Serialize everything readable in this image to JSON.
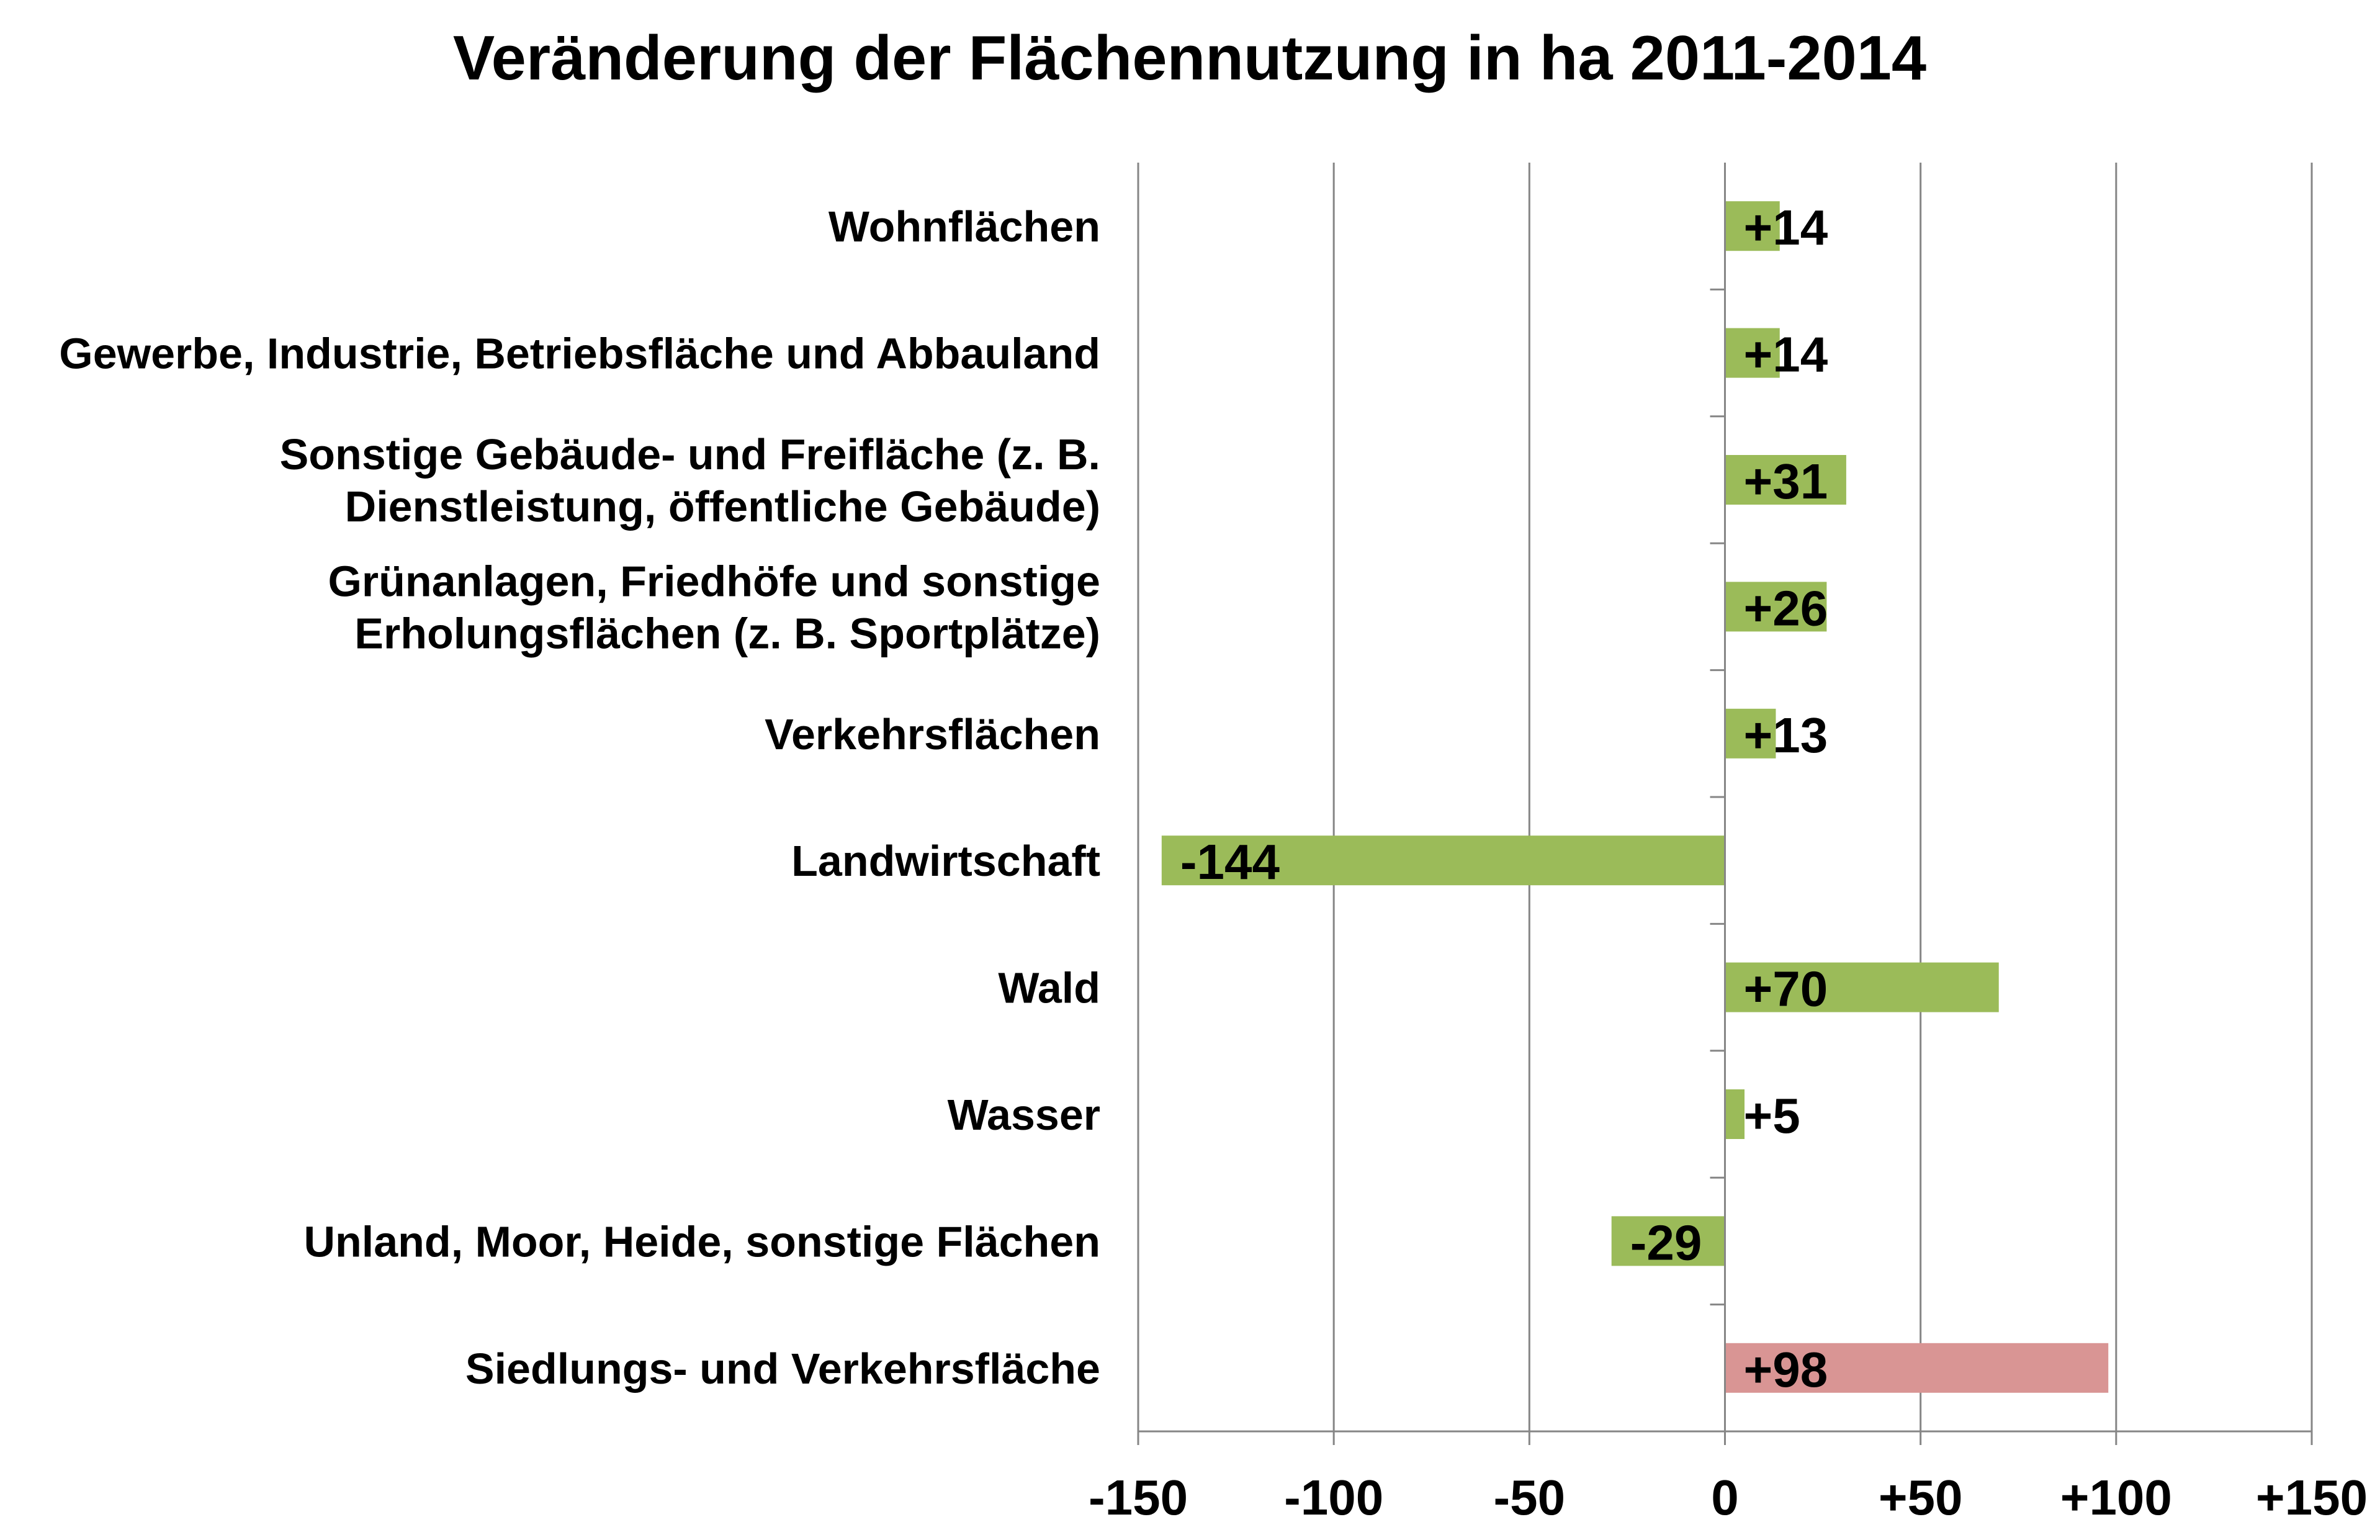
{
  "chart_data": {
    "type": "bar",
    "orientation": "horizontal",
    "title": "Veränderung der Flächennutzung in ha 2011-2014",
    "xlabel": "",
    "ylabel": "",
    "xlim": [
      -150,
      150
    ],
    "grid": true,
    "legend": "none",
    "categories": [
      [
        "Wohnflächen"
      ],
      [
        "Gewerbe, Industrie, Betriebsfläche und Abbauland"
      ],
      [
        "Sonstige Gebäude- und Freifläche (z. B.",
        "Dienstleistung, öffentliche Gebäude)"
      ],
      [
        "Grünanlagen, Friedhöfe und sonstige",
        "Erholungsflächen (z. B. Sportplätze)"
      ],
      [
        "Verkehrsflächen"
      ],
      [
        "Landwirtschaft"
      ],
      [
        "Wald"
      ],
      [
        "Wasser"
      ],
      [
        "Unland, Moor, Heide, sonstige Flächen"
      ],
      [
        "Siedlungs- und Verkehrsfläche"
      ]
    ],
    "values": [
      14,
      14,
      31,
      26,
      13,
      -144,
      70,
      5,
      -29,
      98
    ],
    "data_labels": [
      "+14",
      "+14",
      "+31",
      "+26",
      "+13",
      "-144",
      "+70",
      "+5",
      "-29",
      "+98"
    ],
    "bar_colors": [
      "#9BBB59",
      "#9BBB59",
      "#9BBB59",
      "#9BBB59",
      "#9BBB59",
      "#9BBB59",
      "#9BBB59",
      "#9BBB59",
      "#9BBB59",
      "#D99594"
    ],
    "x_ticks": [
      -150,
      -100,
      -50,
      0,
      50,
      100,
      150
    ],
    "x_tick_labels": [
      "-150",
      "-100",
      "-50",
      "0",
      "+50",
      "+100",
      "+150"
    ],
    "colors": {
      "bar": "#9BBB59",
      "highlight_bar": "#D99594",
      "gridline": "#868686",
      "axis": "#868686",
      "text": "#000000"
    }
  }
}
